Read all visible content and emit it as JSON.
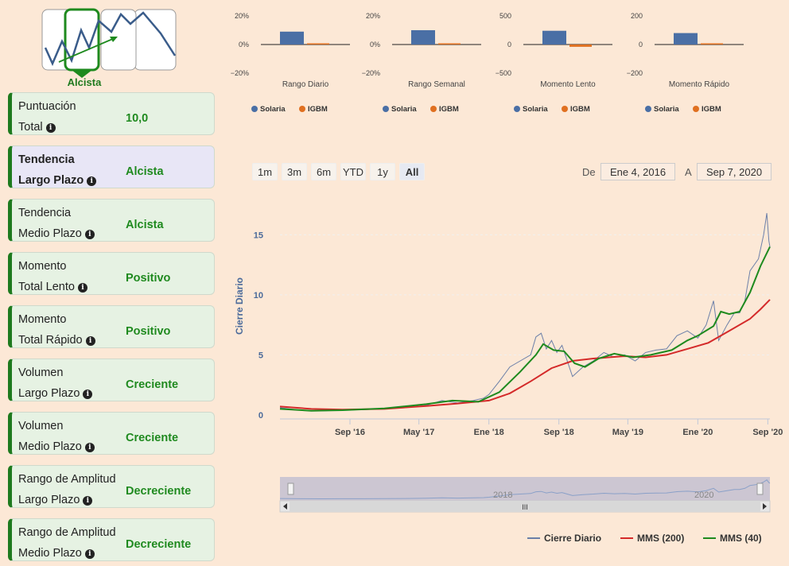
{
  "logo": {
    "label": "Alcista"
  },
  "cards": [
    {
      "line1": "Puntuación",
      "line2": "Total",
      "value": "10,0",
      "active": false
    },
    {
      "line1": "Tendencia",
      "line2": "Largo Plazo",
      "value": "Alcista",
      "active": true
    },
    {
      "line1": "Tendencia",
      "line2": "Medio Plazo",
      "value": "Alcista",
      "active": false
    },
    {
      "line1": "Momento",
      "line2": "Total Lento",
      "value": "Positivo",
      "active": false
    },
    {
      "line1": "Momento",
      "line2": "Total Rápido",
      "value": "Positivo",
      "active": false
    },
    {
      "line1": "Volumen",
      "line2": "Largo Plazo",
      "value": "Creciente",
      "active": false
    },
    {
      "line1": "Volumen",
      "line2": "Medio Plazo",
      "value": "Creciente",
      "active": false
    },
    {
      "line1": "Rango de Amplitud",
      "line2": "Largo Plazo",
      "value": "Decreciente",
      "active": false
    },
    {
      "line1": "Rango de Amplitud",
      "line2": "Medio Plazo",
      "value": "Decreciente",
      "active": false
    }
  ],
  "colors": {
    "solaria": "#4a6fa5",
    "igbm": "#e07020",
    "mms200": "#d42a2a",
    "mms40": "#1e8a1e",
    "close": "#6b7fa8",
    "green": "#1e7a1e"
  },
  "range_buttons": [
    "1m",
    "3m",
    "6m",
    "YTD",
    "1y",
    "All"
  ],
  "selected_range": "All",
  "date_from_label": "De",
  "date_from": "Ene 4, 2016",
  "date_to_label": "A",
  "date_to": "Sep 7, 2020",
  "navigator": {
    "labels": [
      "2018",
      "2020"
    ],
    "handle": "III"
  },
  "chart_data": [
    {
      "type": "bar",
      "title": "Rango Diario",
      "categories": [
        "Solaria",
        "IGBM"
      ],
      "values": [
        9,
        0
      ],
      "ytick_labels": [
        "20%",
        "0%",
        "−20%"
      ],
      "ylim": [
        -20,
        20
      ],
      "legend": [
        "Solaria",
        "IGBM"
      ]
    },
    {
      "type": "bar",
      "title": "Rango Semanal",
      "categories": [
        "Solaria",
        "IGBM"
      ],
      "values": [
        10,
        0
      ],
      "ytick_labels": [
        "20%",
        "0%",
        "−20%"
      ],
      "ylim": [
        -20,
        20
      ],
      "legend": [
        "Solaria",
        "IGBM"
      ]
    },
    {
      "type": "bar",
      "title": "Momento Lento",
      "categories": [
        "Solaria",
        "IGBM"
      ],
      "values": [
        240,
        -40
      ],
      "ytick_labels": [
        "500",
        "0",
        "−500"
      ],
      "ylim": [
        -500,
        500
      ],
      "legend": [
        "Solaria",
        "IGBM"
      ]
    },
    {
      "type": "bar",
      "title": "Momento Rápido",
      "categories": [
        "Solaria",
        "IGBM"
      ],
      "values": [
        80,
        0
      ],
      "ytick_labels": [
        "200",
        "0",
        "−200"
      ],
      "ylim": [
        -200,
        200
      ],
      "legend": [
        "Solaria",
        "IGBM"
      ]
    },
    {
      "type": "line",
      "ylabel": "Cierre Diario",
      "ylim": [
        0,
        18
      ],
      "yticks": [
        0,
        5,
        10,
        15
      ],
      "xlim": [
        2016.0,
        2020.69
      ],
      "xticks": [
        {
          "x": 2016.67,
          "label": "Sep '16"
        },
        {
          "x": 2017.33,
          "label": "May '17"
        },
        {
          "x": 2018.0,
          "label": "Ene '18"
        },
        {
          "x": 2018.67,
          "label": "Sep '18"
        },
        {
          "x": 2019.33,
          "label": "May '19"
        },
        {
          "x": 2020.0,
          "label": "Ene '20"
        },
        {
          "x": 2020.67,
          "label": "Sep '20"
        }
      ],
      "series": [
        {
          "name": "Cierre Diario",
          "points": [
            [
              2016.0,
              0.6
            ],
            [
              2016.2,
              0.4
            ],
            [
              2016.4,
              0.35
            ],
            [
              2016.6,
              0.4
            ],
            [
              2016.8,
              0.45
            ],
            [
              2017.0,
              0.5
            ],
            [
              2017.2,
              0.6
            ],
            [
              2017.4,
              0.8
            ],
            [
              2017.55,
              1.2
            ],
            [
              2017.7,
              1.0
            ],
            [
              2017.85,
              1.2
            ],
            [
              2017.95,
              1.4
            ],
            [
              2018.0,
              1.7
            ],
            [
              2018.1,
              2.8
            ],
            [
              2018.2,
              4.0
            ],
            [
              2018.3,
              4.5
            ],
            [
              2018.4,
              5.0
            ],
            [
              2018.45,
              6.5
            ],
            [
              2018.5,
              6.8
            ],
            [
              2018.55,
              5.5
            ],
            [
              2018.6,
              6.2
            ],
            [
              2018.65,
              5.2
            ],
            [
              2018.7,
              5.8
            ],
            [
              2018.75,
              4.5
            ],
            [
              2018.8,
              3.2
            ],
            [
              2018.9,
              4.0
            ],
            [
              2019.0,
              4.5
            ],
            [
              2019.1,
              5.2
            ],
            [
              2019.2,
              4.8
            ],
            [
              2019.3,
              5.0
            ],
            [
              2019.4,
              4.5
            ],
            [
              2019.5,
              5.2
            ],
            [
              2019.6,
              5.4
            ],
            [
              2019.7,
              5.5
            ],
            [
              2019.8,
              6.6
            ],
            [
              2019.9,
              7.0
            ],
            [
              2020.0,
              6.4
            ],
            [
              2020.08,
              7.5
            ],
            [
              2020.15,
              9.5
            ],
            [
              2020.2,
              6.2
            ],
            [
              2020.28,
              7.5
            ],
            [
              2020.35,
              8.5
            ],
            [
              2020.4,
              8.5
            ],
            [
              2020.45,
              9.5
            ],
            [
              2020.5,
              12.0
            ],
            [
              2020.58,
              13.0
            ],
            [
              2020.63,
              15.0
            ],
            [
              2020.66,
              16.8
            ],
            [
              2020.68,
              14.5
            ],
            [
              2020.69,
              14.0
            ]
          ]
        },
        {
          "name": "MMS (200)",
          "points": [
            [
              2016.0,
              0.7
            ],
            [
              2016.3,
              0.5
            ],
            [
              2016.6,
              0.45
            ],
            [
              2017.0,
              0.5
            ],
            [
              2017.4,
              0.75
            ],
            [
              2017.7,
              0.95
            ],
            [
              2018.0,
              1.2
            ],
            [
              2018.2,
              1.8
            ],
            [
              2018.4,
              2.8
            ],
            [
              2018.6,
              3.9
            ],
            [
              2018.8,
              4.5
            ],
            [
              2019.0,
              4.7
            ],
            [
              2019.3,
              4.9
            ],
            [
              2019.5,
              4.8
            ],
            [
              2019.7,
              5.0
            ],
            [
              2019.9,
              5.5
            ],
            [
              2020.1,
              6.0
            ],
            [
              2020.3,
              7.0
            ],
            [
              2020.5,
              8.0
            ],
            [
              2020.6,
              8.8
            ],
            [
              2020.69,
              9.6
            ]
          ]
        },
        {
          "name": "MMS (40)",
          "points": [
            [
              2016.0,
              0.5
            ],
            [
              2016.3,
              0.35
            ],
            [
              2016.6,
              0.4
            ],
            [
              2017.0,
              0.55
            ],
            [
              2017.4,
              0.9
            ],
            [
              2017.65,
              1.2
            ],
            [
              2017.9,
              1.1
            ],
            [
              2018.1,
              1.9
            ],
            [
              2018.3,
              3.6
            ],
            [
              2018.45,
              5.0
            ],
            [
              2018.52,
              5.9
            ],
            [
              2018.62,
              5.4
            ],
            [
              2018.72,
              5.3
            ],
            [
              2018.82,
              4.3
            ],
            [
              2018.92,
              4.0
            ],
            [
              2019.05,
              4.7
            ],
            [
              2019.2,
              5.1
            ],
            [
              2019.38,
              4.8
            ],
            [
              2019.55,
              5.0
            ],
            [
              2019.75,
              5.4
            ],
            [
              2019.9,
              6.2
            ],
            [
              2020.0,
              6.6
            ],
            [
              2020.15,
              7.4
            ],
            [
              2020.22,
              8.6
            ],
            [
              2020.3,
              8.4
            ],
            [
              2020.4,
              8.6
            ],
            [
              2020.5,
              10.2
            ],
            [
              2020.6,
              12.4
            ],
            [
              2020.69,
              14.0
            ]
          ]
        }
      ],
      "legend": [
        "Cierre Diario",
        "MMS (200)",
        "MMS (40)"
      ]
    }
  ]
}
